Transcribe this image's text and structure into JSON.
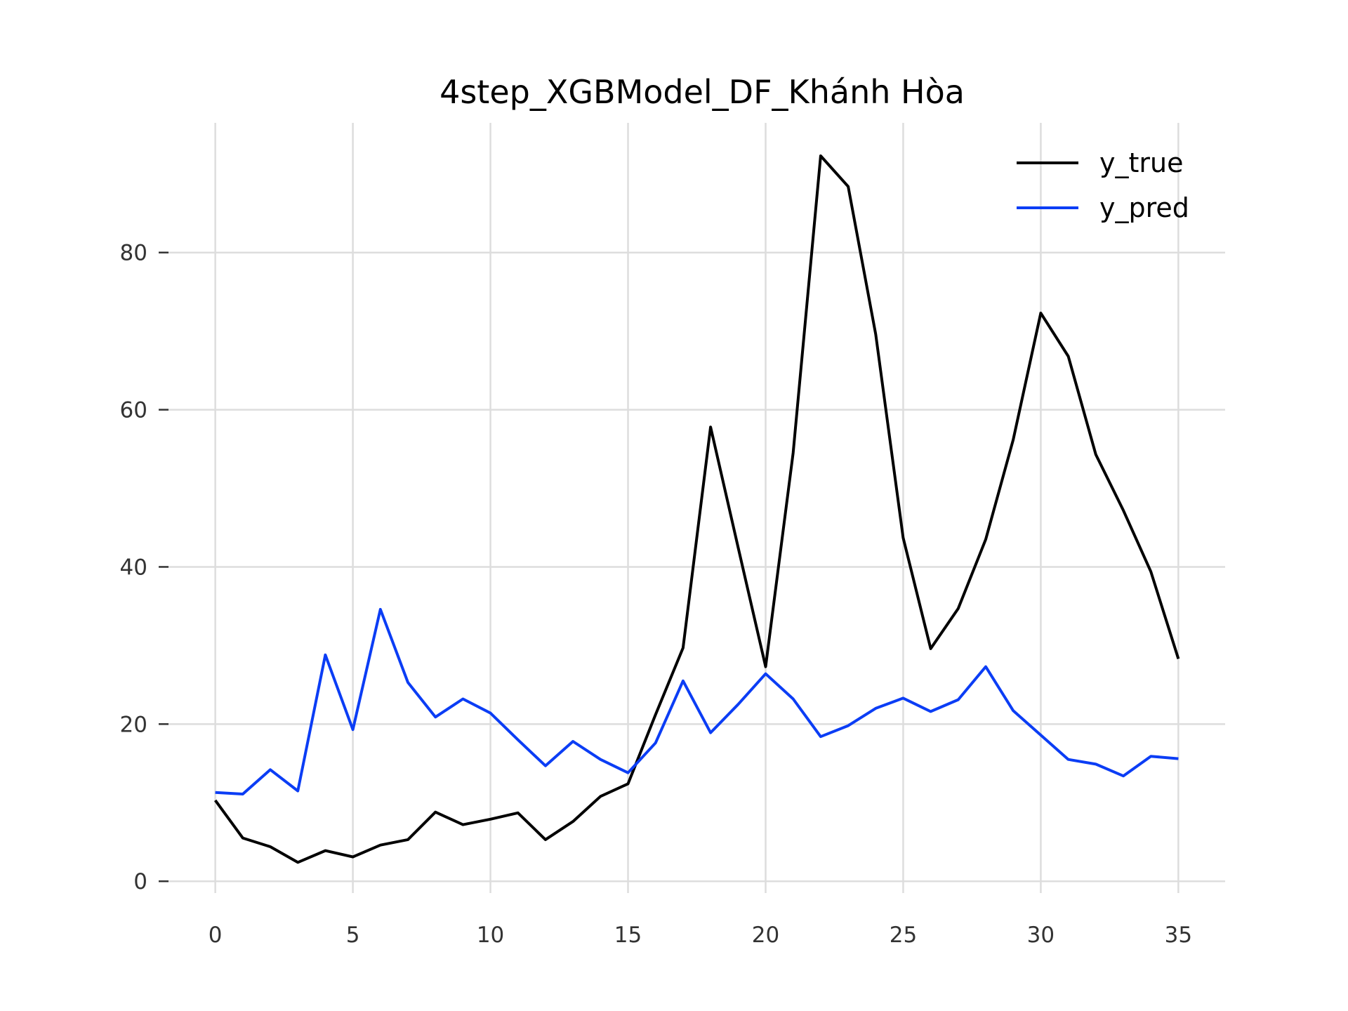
{
  "chart_data": {
    "type": "line",
    "title": "4step_XGBModel_DF_Khánh Hòa",
    "xlabel": "",
    "ylabel": "",
    "xlim": [
      -1.7,
      36.7
    ],
    "ylim": [
      -1.5,
      96.5
    ],
    "grid": true,
    "legend_position": "top-right",
    "x_ticks": [
      0,
      5,
      10,
      15,
      20,
      25,
      30,
      35
    ],
    "y_ticks": [
      0,
      20,
      40,
      60,
      80
    ],
    "x": [
      0,
      1,
      2,
      3,
      4,
      5,
      6,
      7,
      8,
      9,
      10,
      11,
      12,
      13,
      14,
      15,
      16,
      17,
      18,
      19,
      20,
      21,
      22,
      23,
      24,
      25,
      26,
      27,
      28,
      29,
      30,
      31,
      32,
      33,
      34,
      35
    ],
    "series": [
      {
        "name": "y_true",
        "color": "#000000",
        "values": [
          10.3,
          5.5,
          4.4,
          2.4,
          3.9,
          3.1,
          4.6,
          5.3,
          8.8,
          7.2,
          7.9,
          8.7,
          5.3,
          7.6,
          10.8,
          12.4,
          21.2,
          29.7,
          57.8,
          42.5,
          27.3,
          54.5,
          92.3,
          88.4,
          69.6,
          43.7,
          29.6,
          34.7,
          43.5,
          56.2,
          72.3,
          66.8,
          54.3,
          47.2,
          39.4,
          28.3
        ]
      },
      {
        "name": "y_pred",
        "color": "#0b3df5",
        "values": [
          11.3,
          11.1,
          14.2,
          11.5,
          28.8,
          19.3,
          34.6,
          25.3,
          20.9,
          23.2,
          21.4,
          18.0,
          14.7,
          17.8,
          15.5,
          13.8,
          17.6,
          25.5,
          18.9,
          22.5,
          26.4,
          23.2,
          18.4,
          19.8,
          22.0,
          23.3,
          21.6,
          23.1,
          27.3,
          21.7,
          18.6,
          15.5,
          14.9,
          13.4,
          15.9,
          15.6
        ]
      }
    ]
  }
}
